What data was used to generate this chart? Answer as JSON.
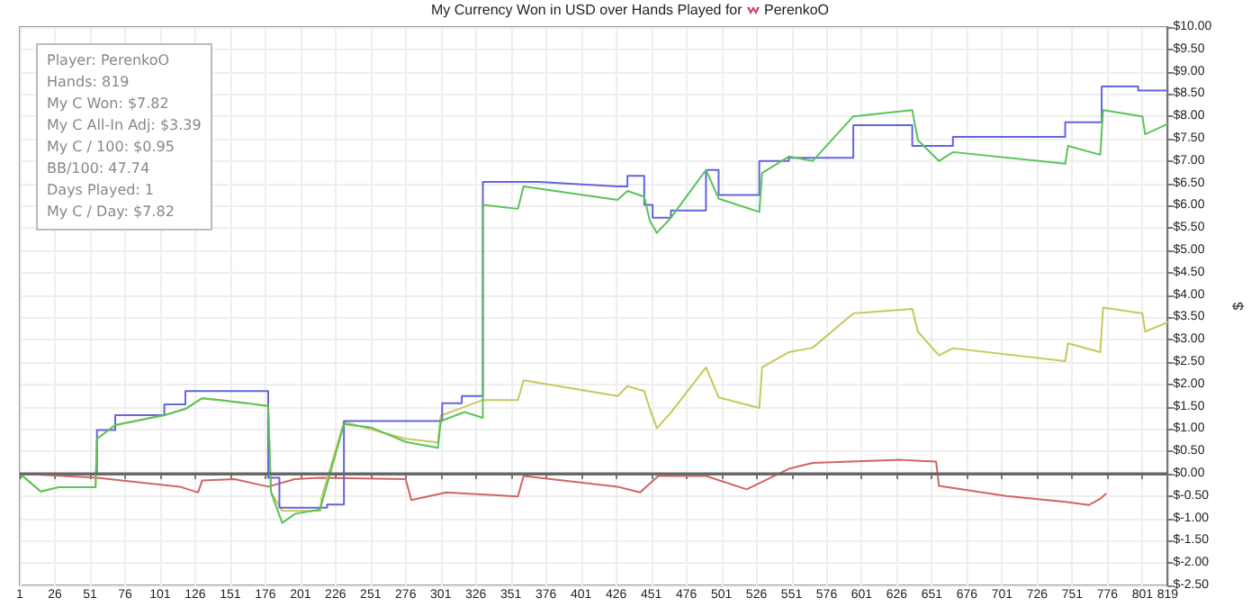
{
  "chart_data": {
    "type": "line",
    "title": "My Currency Won in USD over Hands Played for PerenkoO",
    "ylabel": "$",
    "xlim": [
      1,
      819
    ],
    "xticks": [
      1,
      26,
      51,
      76,
      101,
      126,
      151,
      176,
      201,
      226,
      251,
      276,
      301,
      326,
      351,
      376,
      401,
      426,
      451,
      476,
      501,
      526,
      551,
      576,
      601,
      626,
      651,
      676,
      701,
      726,
      751,
      776,
      801,
      819
    ],
    "ylim": [
      -2.5,
      10
    ],
    "yticks": [
      {
        "value": -2.5,
        "label": "$-2.50"
      },
      {
        "value": -2,
        "label": "$-2.00"
      },
      {
        "value": -1.5,
        "label": "$-1.50"
      },
      {
        "value": -1,
        "label": "$-1.00"
      },
      {
        "value": -0.5,
        "label": "$-0.50"
      },
      {
        "value": 0,
        "label": "$0.00"
      },
      {
        "value": 0.5,
        "label": "$0.50"
      },
      {
        "value": 1,
        "label": "$1.00"
      },
      {
        "value": 1.5,
        "label": "$1.50"
      },
      {
        "value": 2,
        "label": "$2.00"
      },
      {
        "value": 2.5,
        "label": "$2.50"
      },
      {
        "value": 3,
        "label": "$3.00"
      },
      {
        "value": 3.5,
        "label": "$3.50"
      },
      {
        "value": 4,
        "label": "$4.00"
      },
      {
        "value": 4.5,
        "label": "$4.50"
      },
      {
        "value": 5,
        "label": "$5.00"
      },
      {
        "value": 5.5,
        "label": "$5.50"
      },
      {
        "value": 6,
        "label": "$6.00"
      },
      {
        "value": 6.5,
        "label": "$6.50"
      },
      {
        "value": 7,
        "label": "$7.00"
      },
      {
        "value": 7.5,
        "label": "$7.50"
      },
      {
        "value": 8,
        "label": "$8.00"
      },
      {
        "value": 8.5,
        "label": "$8.50"
      },
      {
        "value": 9,
        "label": "$9.00"
      },
      {
        "value": 9.5,
        "label": "$9.50"
      },
      {
        "value": 10,
        "label": "$10.00"
      }
    ],
    "grid": true,
    "marker": "none",
    "line_style": "solid",
    "ref_lines": [
      {
        "axis": "y",
        "value": 0,
        "color": "#666666"
      }
    ],
    "annotations": [
      "Player: PerenkoO",
      "Hands: 819",
      "My C Won: $7.82",
      "My C All-In Adj: $3.39",
      "My C / 100: $0.95",
      "BB/100: 47.74",
      "Days Played: 1",
      "My C / Day: $7.82"
    ],
    "series": [
      {
        "color": "#d26464",
        "x": [
          1,
          56,
          115,
          128,
          131,
          154,
          178,
          197,
          215,
          276,
          280,
          305,
          356,
          360,
          427,
          443,
          456,
          490,
          519,
          549,
          566,
          629,
          654,
          656,
          704,
          746,
          763,
          771,
          775
        ],
        "values": [
          0,
          -0.09,
          -0.29,
          -0.42,
          -0.15,
          -0.12,
          -0.29,
          -0.12,
          -0.09,
          -0.12,
          -0.59,
          -0.42,
          -0.51,
          -0.05,
          -0.29,
          -0.42,
          -0.05,
          -0.05,
          -0.35,
          0.11,
          0.24,
          0.31,
          0.27,
          -0.27,
          -0.5,
          -0.63,
          -0.7,
          -0.56,
          -0.45
        ]
      },
      {
        "color": "#c8c85a",
        "x": [
          1,
          16,
          29,
          55,
          56,
          69,
          104,
          119,
          131,
          163,
          178,
          180,
          188,
          215,
          216,
          232,
          276,
          299,
          301,
          331,
          356,
          360,
          427,
          434,
          446,
          450,
          455,
          465,
          490,
          499,
          528,
          530,
          549,
          566,
          595,
          637,
          641,
          656,
          666,
          746,
          748,
          771,
          773,
          801,
          803,
          819
        ],
        "values": [
          0,
          -0.4,
          -0.3,
          -0.3,
          0.78,
          1.09,
          1.31,
          1.45,
          1.69,
          1.58,
          1.51,
          -0.41,
          -0.83,
          -0.83,
          -0.54,
          1.16,
          0.78,
          0.7,
          1.3,
          1.65,
          1.65,
          2.09,
          1.74,
          1.96,
          1.85,
          1.45,
          1.02,
          1.37,
          2.38,
          1.71,
          1.47,
          2.38,
          2.72,
          2.82,
          3.59,
          3.69,
          3.18,
          2.65,
          2.81,
          2.52,
          2.92,
          2.72,
          3.72,
          3.59,
          3.18,
          3.39
        ]
      },
      {
        "color": "#6464dc",
        "x": [
          1,
          56,
          56,
          69,
          69,
          104,
          104,
          119,
          119,
          178,
          178,
          186,
          186,
          220,
          220,
          232,
          232,
          302,
          302,
          316,
          316,
          331,
          331,
          371,
          427,
          434,
          434,
          446,
          446,
          452,
          452,
          465,
          465,
          490,
          490,
          499,
          499,
          528,
          528,
          549,
          549,
          595,
          595,
          637,
          637,
          666,
          666,
          746,
          746,
          772,
          772,
          798,
          798,
          819
        ],
        "values": [
          0,
          0,
          0.98,
          0.98,
          1.31,
          1.31,
          1.55,
          1.55,
          1.85,
          1.85,
          -0.09,
          -0.09,
          -0.76,
          -0.76,
          -0.69,
          -0.69,
          1.18,
          1.18,
          1.58,
          1.58,
          1.74,
          1.74,
          6.53,
          6.53,
          6.43,
          6.43,
          6.67,
          6.67,
          6.02,
          6.02,
          5.73,
          5.73,
          5.89,
          5.89,
          6.8,
          6.8,
          6.24,
          6.24,
          7.0,
          7.0,
          7.07,
          7.07,
          7.8,
          7.8,
          7.34,
          7.34,
          7.54,
          7.54,
          7.87,
          7.87,
          8.67,
          8.67,
          8.58,
          8.58
        ]
      },
      {
        "color": "#5ac35a",
        "x": [
          1,
          16,
          29,
          55,
          56,
          69,
          104,
          119,
          131,
          163,
          178,
          180,
          188,
          197,
          215,
          232,
          251,
          276,
          299,
          301,
          318,
          331,
          331,
          356,
          360,
          427,
          434,
          446,
          450,
          455,
          465,
          490,
          499,
          528,
          530,
          549,
          566,
          595,
          637,
          641,
          656,
          666,
          746,
          748,
          771,
          773,
          801,
          803,
          819
        ],
        "values": [
          0,
          -0.4,
          -0.3,
          -0.3,
          0.78,
          1.09,
          1.31,
          1.45,
          1.69,
          1.58,
          1.51,
          -0.41,
          -1.1,
          -0.9,
          -0.8,
          1.11,
          1.04,
          0.71,
          0.58,
          1.18,
          1.38,
          1.25,
          6.02,
          5.93,
          6.43,
          6.13,
          6.33,
          6.2,
          5.66,
          5.39,
          5.73,
          6.8,
          6.16,
          5.86,
          6.73,
          7.1,
          7.0,
          8.0,
          8.14,
          7.47,
          7.0,
          7.2,
          6.94,
          7.34,
          7.14,
          8.14,
          8.0,
          7.6,
          7.83
        ]
      }
    ]
  }
}
